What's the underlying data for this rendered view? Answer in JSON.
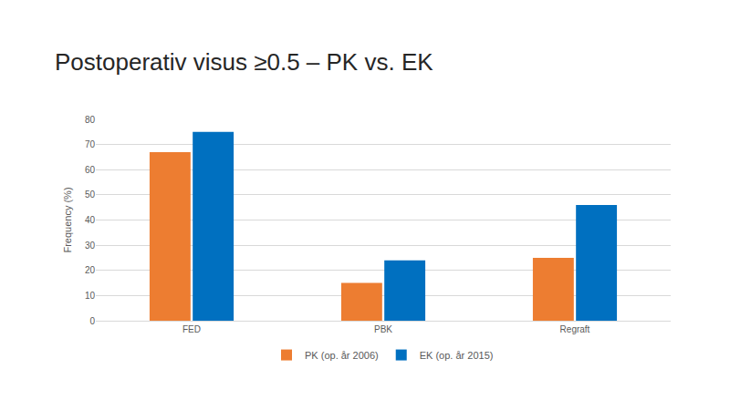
{
  "chart_data": {
    "type": "bar",
    "title": "Postoperativ visus ≥0.5 – PK vs. EK",
    "y_label": "Frequency (%)",
    "categories": [
      "FED",
      "PBK",
      "Regraft"
    ],
    "series": [
      {
        "name": "PK (op. år 2006)",
        "color": "#ED7D31",
        "values": [
          67,
          15,
          25
        ]
      },
      {
        "name": "EK (op. år 2015)",
        "color": "#0070C0",
        "values": [
          75,
          24,
          46
        ]
      }
    ],
    "ylim": [
      0,
      80
    ],
    "yticks": [
      0,
      10,
      20,
      30,
      40,
      50,
      60,
      70,
      80
    ],
    "grid": true,
    "legend": "bottom"
  }
}
